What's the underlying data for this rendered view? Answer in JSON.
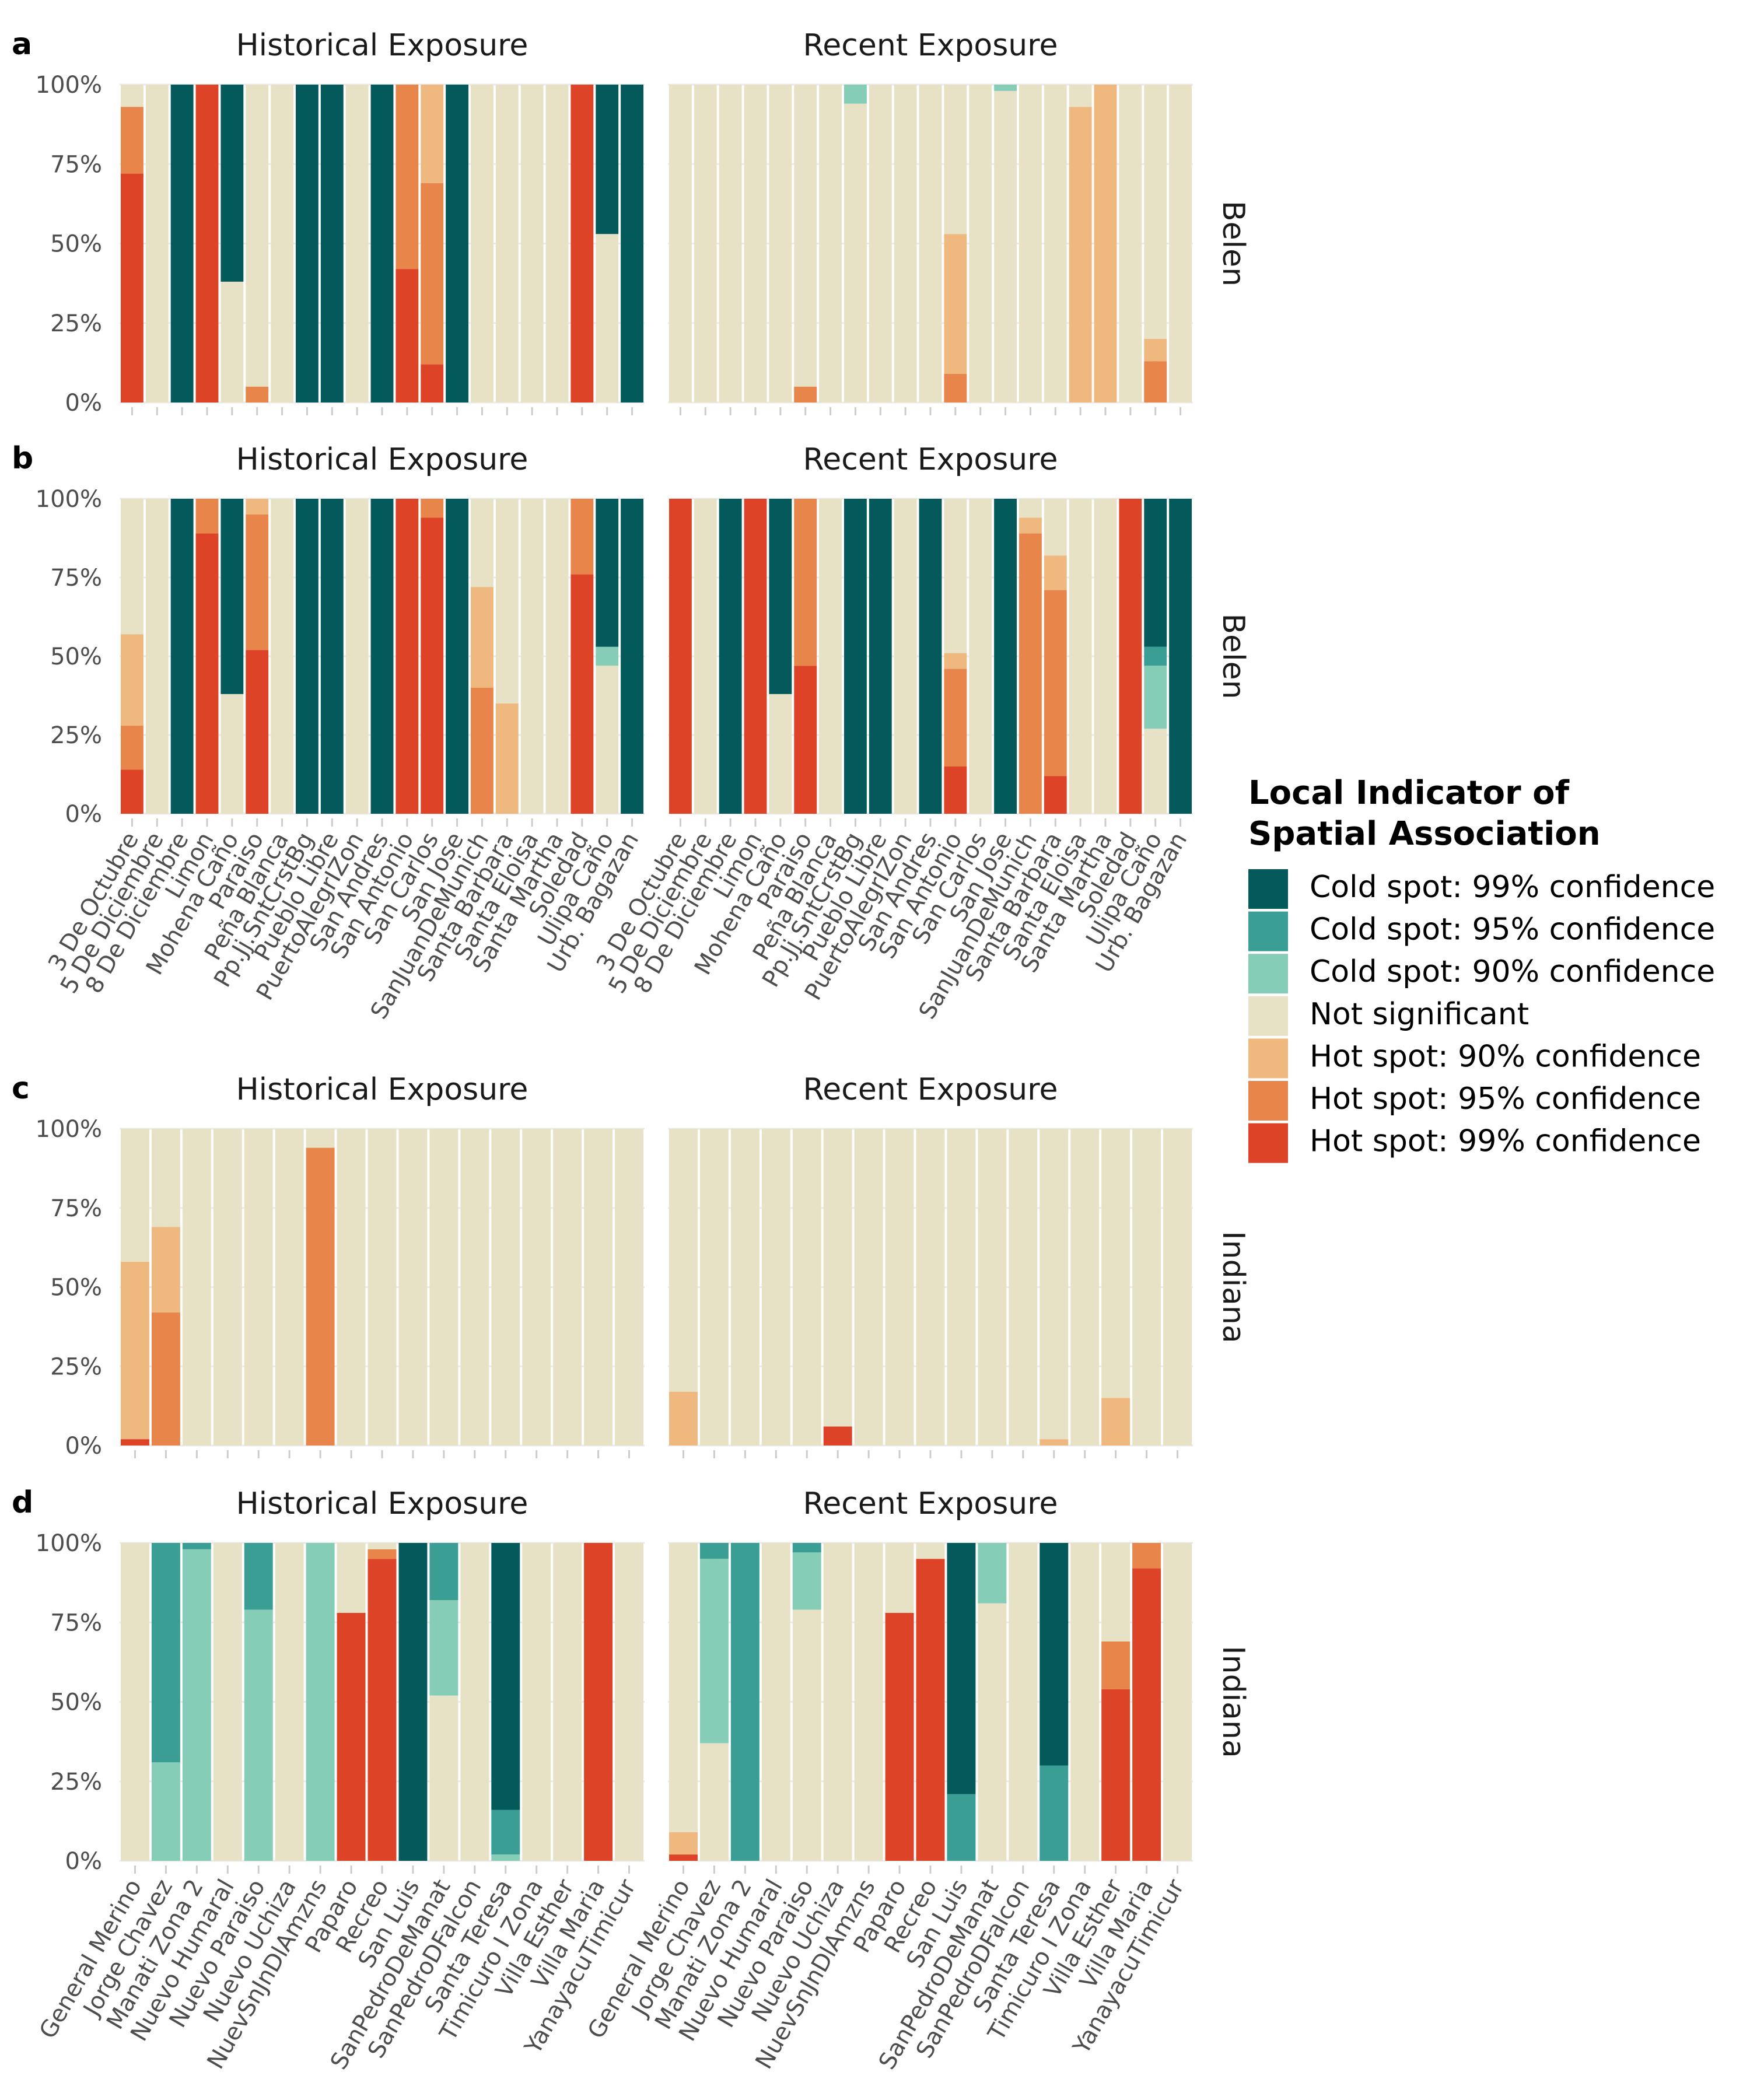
{
  "colors": {
    "Cold spot: 99% confidence": "#045a5a",
    "Cold spot: 95% confidence": "#3a9e94",
    "Cold spot: 90% confidence": "#86cdb7",
    "Not significant": "#e7e2c5",
    "Hot spot: 90% confidence": "#eeb87f",
    "Hot spot: 95% confidence": "#e8854a",
    "Hot spot: 99% confidence": "#dc4327"
  },
  "legend": {
    "title_line1": "Local Indicator of",
    "title_line2": "Spatial Association",
    "entries": [
      "Cold spot: 99% confidence",
      "Cold spot: 95% confidence",
      "Cold spot: 90% confidence",
      "Not significant",
      "Hot spot: 90% confidence",
      "Hot spot: 95% confidence",
      "Hot spot: 99% confidence"
    ]
  },
  "y_ticks": [
    "0%",
    "25%",
    "50%",
    "75%",
    "100%"
  ],
  "chart_data": {
    "type": "bar",
    "stacked": true,
    "ylim": [
      0,
      100
    ],
    "grid": true,
    "legend_position": "right",
    "stack_order_bottom_to_top": [
      "H99",
      "H95",
      "H90",
      "NS",
      "C90",
      "C95",
      "C99"
    ],
    "category_key": {
      "C99": "Cold spot: 99% confidence",
      "C95": "Cold spot: 95% confidence",
      "C90": "Cold spot: 90% confidence",
      "NS": "Not significant",
      "H90": "Hot spot: 90% confidence",
      "H95": "Hot spot: 95% confidence",
      "H99": "Hot spot: 99% confidence"
    },
    "panel_titles": [
      "Historical Exposure",
      "Recent Exposure"
    ],
    "locations": {
      "Belen": [
        "3 De Octubre",
        "5 De Diciembre",
        "8 De Diciembre",
        "Limon",
        "Mohena Caño",
        "Paraiso",
        "Peña Blanca",
        "Pp.Jj.SntCrstBg",
        "Pueblo Libre",
        "PuertoAlegrIZon",
        "San Andres",
        "San Antonio",
        "San Carlos",
        "San Jose",
        "SanJuanDeMunich",
        "Santa Barbara",
        "Santa Eloisa",
        "Santa Martha",
        "Soledad",
        "Ulipa Caño",
        "Urb. Bagazan"
      ],
      "Indiana": [
        "General Merino",
        "Jorge Chavez",
        "Manati Zona 2",
        "Nuevo Humaral",
        "Nuevo Paraiso",
        "Nuevo Uchiza",
        "NuevSnJnDlAmzns",
        "Paparo",
        "Recreo",
        "San Luis",
        "SanPedroDeManat",
        "SanPedroDFalcon",
        "Santa Teresa",
        "Timicuro I Zona",
        "Villa Esther",
        "Villa Maria",
        "YanayacuTimicur"
      ]
    },
    "rows": [
      {
        "tag": "a",
        "strip": "Belen",
        "location_set": "Belen",
        "show_x_labels": false,
        "historical": [
          {
            "H99": 72,
            "H95": 21,
            "NS": 7
          },
          {
            "NS": 100
          },
          {
            "C99": 100
          },
          {
            "H99": 100
          },
          {
            "NS": 38,
            "C99": 62
          },
          {
            "H95": 5,
            "NS": 95
          },
          {
            "NS": 100
          },
          {
            "C99": 100
          },
          {
            "C99": 100
          },
          {
            "NS": 100
          },
          {
            "C99": 100
          },
          {
            "H99": 42,
            "H95": 58
          },
          {
            "H99": 12,
            "H95": 57,
            "H90": 31
          },
          {
            "C99": 100
          },
          {
            "NS": 100
          },
          {
            "NS": 100
          },
          {
            "NS": 100
          },
          {
            "NS": 100
          },
          {
            "H99": 100
          },
          {
            "NS": 53,
            "C99": 47
          },
          {
            "C99": 100
          }
        ],
        "recent": [
          {
            "NS": 100
          },
          {
            "NS": 100
          },
          {
            "NS": 100
          },
          {
            "NS": 100
          },
          {
            "NS": 100
          },
          {
            "H95": 5,
            "NS": 95
          },
          {
            "NS": 100
          },
          {
            "NS": 94,
            "C90": 6
          },
          {
            "NS": 100
          },
          {
            "NS": 100
          },
          {
            "NS": 100
          },
          {
            "H95": 9,
            "H90": 44,
            "NS": 47
          },
          {
            "NS": 100
          },
          {
            "NS": 98,
            "C90": 2
          },
          {
            "NS": 100
          },
          {
            "NS": 100
          },
          {
            "H90": 93,
            "NS": 7
          },
          {
            "H90": 100
          },
          {
            "NS": 100
          },
          {
            "H95": 13,
            "H90": 7,
            "NS": 80
          },
          {
            "NS": 100
          }
        ]
      },
      {
        "tag": "b",
        "strip": "Belen",
        "location_set": "Belen",
        "show_x_labels": true,
        "historical": [
          {
            "H99": 14,
            "H95": 14,
            "H90": 29,
            "NS": 43
          },
          {
            "NS": 100
          },
          {
            "C99": 100
          },
          {
            "H99": 89,
            "H95": 11
          },
          {
            "NS": 38,
            "C99": 62
          },
          {
            "H99": 52,
            "H95": 43,
            "H90": 5
          },
          {
            "NS": 100
          },
          {
            "C99": 100
          },
          {
            "C99": 100
          },
          {
            "NS": 100
          },
          {
            "C99": 100
          },
          {
            "H99": 100
          },
          {
            "H99": 94,
            "H95": 6
          },
          {
            "C99": 100
          },
          {
            "H95": 40,
            "H90": 32,
            "NS": 28
          },
          {
            "H90": 35,
            "NS": 65
          },
          {
            "NS": 100
          },
          {
            "NS": 100
          },
          {
            "H99": 76,
            "H95": 24
          },
          {
            "NS": 47,
            "C90": 6,
            "C99": 47
          },
          {
            "C99": 100
          }
        ],
        "recent": [
          {
            "H99": 100
          },
          {
            "NS": 100
          },
          {
            "C99": 100
          },
          {
            "H99": 100
          },
          {
            "NS": 38,
            "C99": 62
          },
          {
            "H99": 47,
            "H95": 53
          },
          {
            "NS": 100
          },
          {
            "C99": 100
          },
          {
            "C99": 100
          },
          {
            "NS": 100
          },
          {
            "C99": 100
          },
          {
            "H99": 15,
            "H95": 31,
            "H90": 5,
            "NS": 49
          },
          {
            "NS": 100
          },
          {
            "C99": 100
          },
          {
            "H95": 89,
            "H90": 5,
            "NS": 6
          },
          {
            "H99": 12,
            "H95": 59,
            "H90": 11,
            "NS": 18
          },
          {
            "NS": 100
          },
          {
            "NS": 100
          },
          {
            "H99": 100
          },
          {
            "NS": 27,
            "C90": 20,
            "C95": 6,
            "C99": 47
          },
          {
            "C99": 100
          }
        ]
      },
      {
        "tag": "c",
        "strip": "Indiana",
        "location_set": "Indiana",
        "show_x_labels": false,
        "historical": [
          {
            "H99": 2,
            "H90": 56,
            "NS": 42
          },
          {
            "H95": 42,
            "H90": 27,
            "NS": 31
          },
          {
            "NS": 100
          },
          {
            "NS": 100
          },
          {
            "NS": 100
          },
          {
            "NS": 100
          },
          {
            "H95": 94,
            "NS": 6
          },
          {
            "NS": 100
          },
          {
            "NS": 100
          },
          {
            "NS": 100
          },
          {
            "NS": 100
          },
          {
            "NS": 100
          },
          {
            "NS": 100
          },
          {
            "NS": 100
          },
          {
            "NS": 100
          },
          {
            "NS": 100
          },
          {
            "NS": 100
          }
        ],
        "recent": [
          {
            "H90": 17,
            "NS": 83
          },
          {
            "NS": 100
          },
          {
            "NS": 100
          },
          {
            "NS": 100
          },
          {
            "NS": 100
          },
          {
            "H99": 6,
            "NS": 94
          },
          {
            "NS": 100
          },
          {
            "NS": 100
          },
          {
            "NS": 100
          },
          {
            "NS": 100
          },
          {
            "NS": 100
          },
          {
            "NS": 100
          },
          {
            "H90": 2,
            "NS": 98
          },
          {
            "NS": 100
          },
          {
            "H90": 15,
            "NS": 85
          },
          {
            "NS": 100
          },
          {
            "NS": 100
          }
        ]
      },
      {
        "tag": "d",
        "strip": "Indiana",
        "location_set": "Indiana",
        "show_x_labels": true,
        "historical": [
          {
            "NS": 100
          },
          {
            "C90": 31,
            "C95": 69
          },
          {
            "C90": 98,
            "C95": 2
          },
          {
            "NS": 100
          },
          {
            "C90": 79,
            "C95": 21
          },
          {
            "NS": 100
          },
          {
            "C90": 100
          },
          {
            "H99": 78,
            "NS": 22
          },
          {
            "H99": 95,
            "H95": 3,
            "NS": 2
          },
          {
            "C99": 100
          },
          {
            "NS": 52,
            "C90": 30,
            "C95": 18
          },
          {
            "NS": 100
          },
          {
            "C90": 2,
            "C95": 14,
            "C99": 84
          },
          {
            "NS": 100
          },
          {
            "NS": 100
          },
          {
            "H99": 100
          },
          {
            "NS": 100
          }
        ],
        "recent": [
          {
            "H99": 2,
            "H90": 7,
            "NS": 91
          },
          {
            "NS": 37,
            "C90": 58,
            "C95": 5
          },
          {
            "C95": 100
          },
          {
            "NS": 100
          },
          {
            "NS": 79,
            "C90": 18,
            "C95": 3
          },
          {
            "NS": 100
          },
          {
            "NS": 100
          },
          {
            "H99": 78,
            "NS": 22
          },
          {
            "H99": 95,
            "NS": 5
          },
          {
            "C95": 21,
            "C99": 79
          },
          {
            "NS": 81,
            "C90": 19
          },
          {
            "NS": 100
          },
          {
            "C95": 30,
            "C99": 70
          },
          {
            "NS": 100
          },
          {
            "H99": 54,
            "H95": 15,
            "NS": 31
          },
          {
            "H99": 92,
            "H95": 8
          },
          {
            "NS": 100
          }
        ]
      }
    ]
  }
}
